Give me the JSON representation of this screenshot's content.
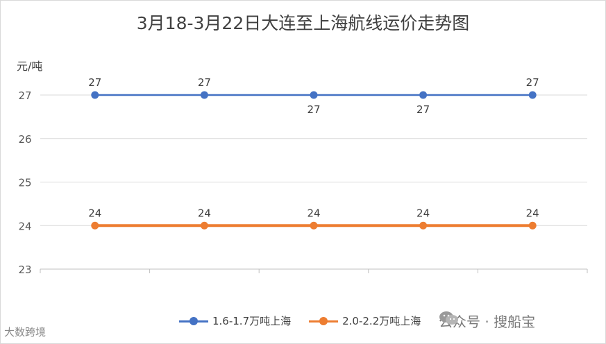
{
  "chart_data": {
    "type": "line",
    "title": "3月18-3月22日大连至上海航线运价走势图",
    "ylabel": "元/吨",
    "ylim": [
      23,
      27
    ],
    "yticks": [
      "23",
      "24",
      "25",
      "26",
      "27"
    ],
    "categories": [
      "",
      "",
      "",
      "",
      ""
    ],
    "series": [
      {
        "name": "1.6-1.7万吨上海",
        "values": [
          27,
          27,
          27,
          27,
          27
        ],
        "labels": [
          "27",
          "27",
          "27",
          "27",
          "27"
        ],
        "color": "#4472c4"
      },
      {
        "name": "2.0-2.2万吨上海",
        "values": [
          24,
          24,
          24,
          24,
          24
        ],
        "labels": [
          "24",
          "24",
          "24",
          "24",
          "24"
        ],
        "color": "#ed7d31"
      }
    ],
    "grid": true,
    "legend_position": "bottom"
  },
  "watermark_left": "大数跨境",
  "watermark_right": "公众号 · 搜船宝"
}
